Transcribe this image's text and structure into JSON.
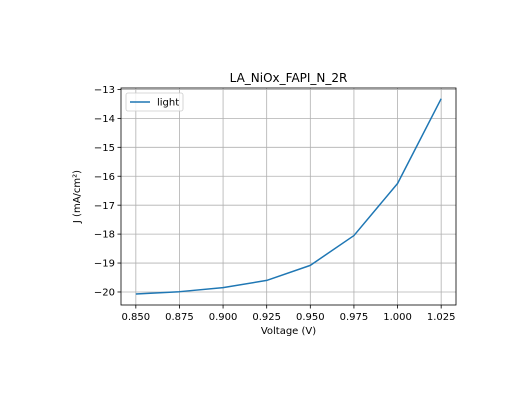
{
  "chart_data": {
    "type": "line",
    "title": "LA_NiOx_FAPI_N_2R",
    "xlabel": "Voltage (V)",
    "ylabel": "J (mA/cm²)",
    "xlim": [
      0.8415,
      1.0335
    ],
    "ylim": [
      -20.45,
      -12.95
    ],
    "xticks": [
      0.85,
      0.875,
      0.9,
      0.925,
      0.95,
      0.975,
      1.0,
      1.025
    ],
    "xtick_labels": [
      "0.850",
      "0.875",
      "0.900",
      "0.925",
      "0.950",
      "0.975",
      "1.000",
      "1.025"
    ],
    "yticks": [
      -20,
      -19,
      -18,
      -17,
      -16,
      -15,
      -14,
      -13
    ],
    "ytick_labels": [
      "−20",
      "−19",
      "−18",
      "−17",
      "−16",
      "−15",
      "−14",
      "−13"
    ],
    "grid": true,
    "legend_position": "top-left",
    "series": [
      {
        "name": "light",
        "color": "#1f77b4",
        "x": [
          0.85,
          0.875,
          0.9,
          0.925,
          0.95,
          0.975,
          1.0,
          1.025
        ],
        "y": [
          -20.07,
          -19.99,
          -19.85,
          -19.6,
          -19.08,
          -18.05,
          -16.25,
          -13.32
        ]
      }
    ]
  }
}
